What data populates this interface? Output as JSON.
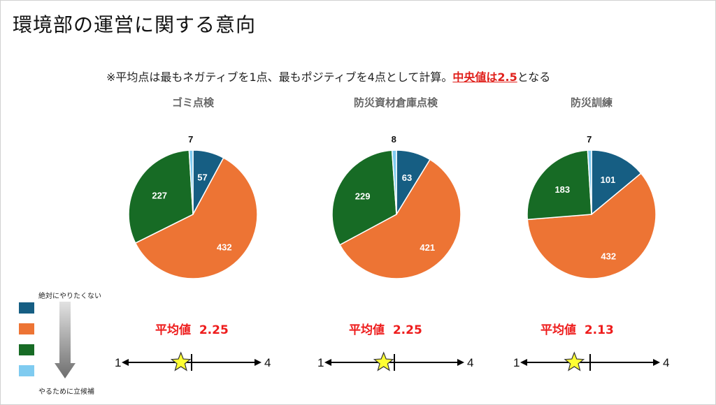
{
  "title": "環境部の運営に関する意向",
  "note": {
    "text_before": "※平均点は最もネガティブを1点、最もポジティブを4点として計算。",
    "highlight": "中央値は2.5",
    "text_after": "となる"
  },
  "legend": {
    "top_label": "絶対にやりたくない",
    "bottom_label": "やるために立候補",
    "colors": [
      "#165e83",
      "#ed7434",
      "#176b25",
      "#7fcbf0"
    ]
  },
  "chart_data": [
    {
      "type": "pie",
      "title": "ゴミ点検",
      "values": [
        57,
        432,
        227,
        7
      ],
      "colors": [
        "#165e83",
        "#ed7434",
        "#176b25",
        "#7fcbf0"
      ],
      "average_label": "平均値",
      "average_value": "2.25",
      "average": 2.25,
      "scale_min": "1",
      "scale_max": "4"
    },
    {
      "type": "pie",
      "title": "防災資材倉庫点検",
      "values": [
        63,
        421,
        229,
        8
      ],
      "colors": [
        "#165e83",
        "#ed7434",
        "#176b25",
        "#7fcbf0"
      ],
      "average_label": "平均値",
      "average_value": "2.25",
      "average": 2.25,
      "scale_min": "1",
      "scale_max": "4"
    },
    {
      "type": "pie",
      "title": "防災訓練",
      "values": [
        101,
        432,
        183,
        7
      ],
      "colors": [
        "#165e83",
        "#ed7434",
        "#176b25",
        "#7fcbf0"
      ],
      "average_label": "平均値",
      "average_value": "2.13",
      "average": 2.13,
      "scale_min": "1",
      "scale_max": "4"
    }
  ]
}
